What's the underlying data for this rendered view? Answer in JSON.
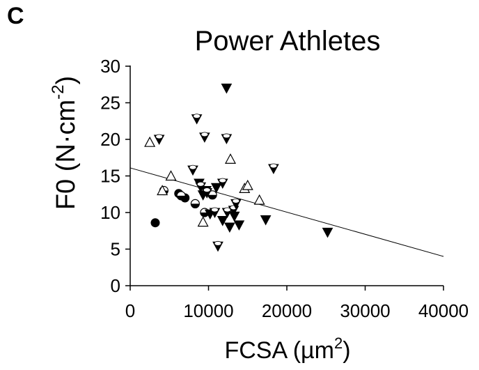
{
  "panel_label": "C",
  "chart_data": {
    "type": "scatter",
    "title": "Power Athletes",
    "xlabel": {
      "text": "FCSA (µm",
      "sup": "2",
      "suffix": ")"
    },
    "ylabel": {
      "text": "F0 (N·cm",
      "sup": "-2",
      "suffix": ")"
    },
    "xlim": [
      0,
      40000
    ],
    "ylim": [
      0,
      30
    ],
    "xticks": [
      0,
      10000,
      20000,
      30000,
      40000
    ],
    "yticks": [
      0,
      5,
      10,
      15,
      20,
      25,
      30
    ],
    "grid": false,
    "legend": "none",
    "trendline": {
      "x": [
        0,
        40000
      ],
      "y": [
        16.1,
        4.0
      ]
    },
    "series": [
      {
        "marker": "filled-circle",
        "points": [
          [
            3200,
            8.6
          ],
          [
            6200,
            12.6
          ],
          [
            7000,
            12.0
          ]
        ]
      },
      {
        "marker": "half-circle",
        "points": [
          [
            4300,
            13.0
          ],
          [
            6500,
            12.3
          ],
          [
            8300,
            11.2
          ],
          [
            9500,
            10.0
          ],
          [
            10500,
            12.4
          ]
        ]
      },
      {
        "marker": "filled-triangle-down",
        "points": [
          [
            12300,
            27.0
          ],
          [
            8800,
            14.0
          ],
          [
            9300,
            12.4
          ],
          [
            9700,
            13.0
          ],
          [
            10200,
            9.8
          ],
          [
            11000,
            13.4
          ],
          [
            11800,
            8.9
          ],
          [
            12700,
            8.0
          ],
          [
            13300,
            9.5
          ],
          [
            13900,
            8.3
          ],
          [
            17300,
            9.0
          ],
          [
            25200,
            7.3
          ]
        ]
      },
      {
        "marker": "half-triangle-down",
        "points": [
          [
            3700,
            20.0
          ],
          [
            8500,
            22.8
          ],
          [
            9500,
            20.3
          ],
          [
            12300,
            20.1
          ],
          [
            8000,
            15.8
          ],
          [
            9000,
            13.5
          ],
          [
            9800,
            12.7
          ],
          [
            10800,
            10.0
          ],
          [
            11800,
            14.0
          ],
          [
            12400,
            10.0
          ],
          [
            13200,
            10.3
          ],
          [
            13500,
            11.2
          ],
          [
            11200,
            5.4
          ],
          [
            18300,
            16.0
          ]
        ]
      },
      {
        "marker": "open-triangle-up",
        "points": [
          [
            2500,
            19.6
          ],
          [
            5200,
            15.0
          ],
          [
            4100,
            13.0
          ],
          [
            9300,
            8.7
          ],
          [
            12800,
            17.3
          ],
          [
            14600,
            13.3
          ],
          [
            15000,
            13.7
          ],
          [
            16500,
            11.7
          ]
        ]
      }
    ]
  }
}
